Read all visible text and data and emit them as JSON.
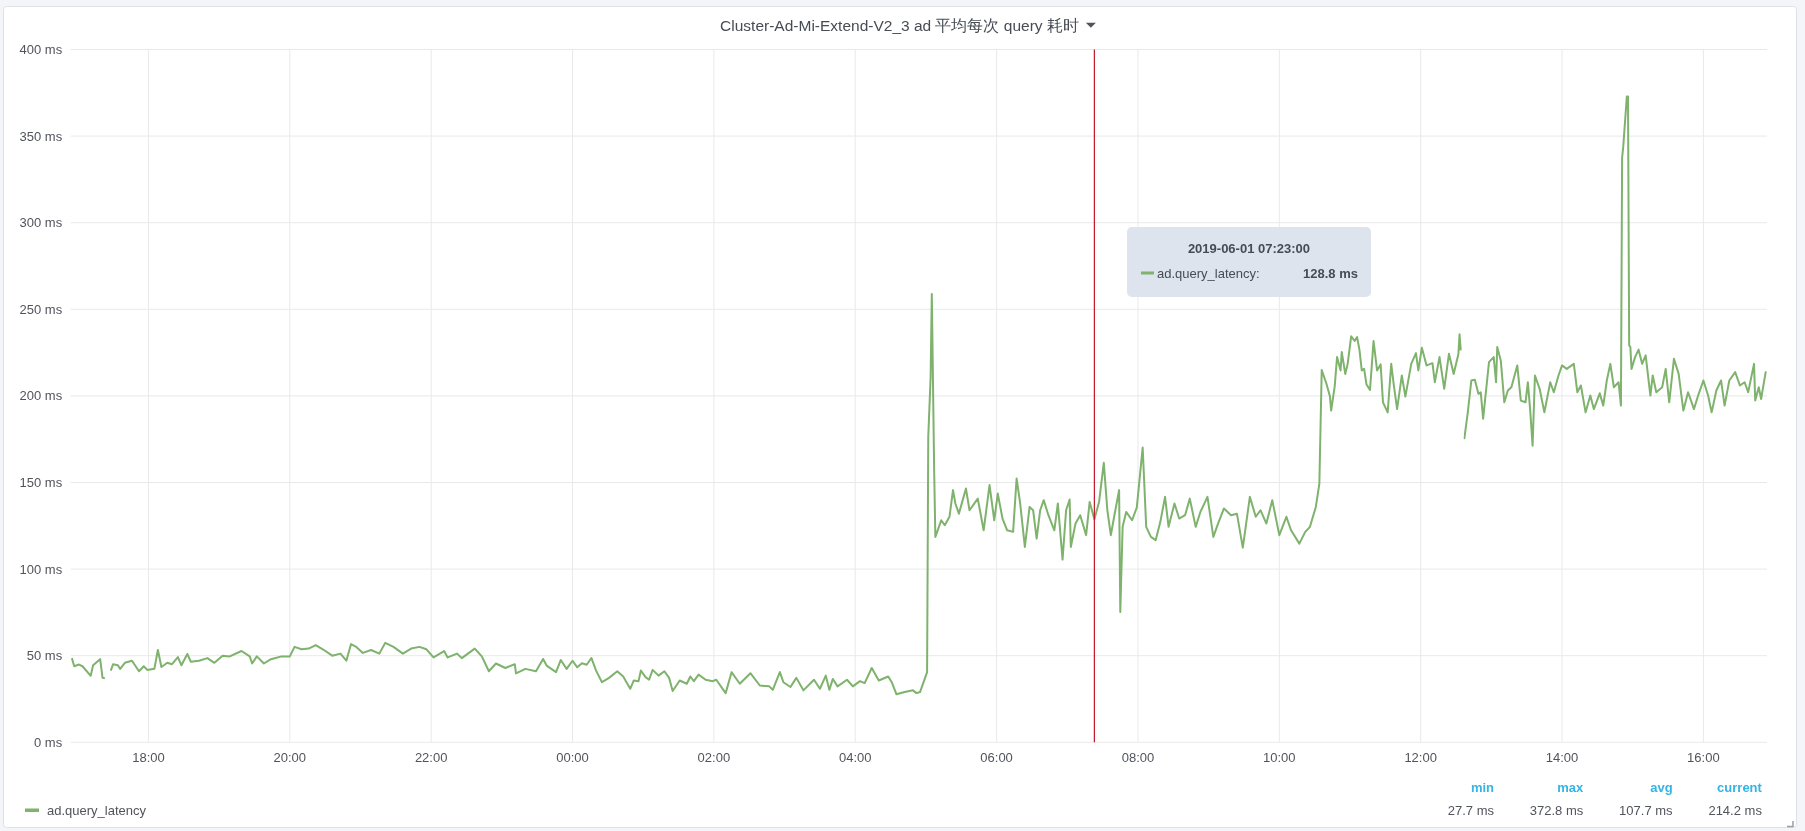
{
  "chart_data": {
    "type": "line",
    "title": "Cluster-Ad-Mi-Extend-V2_3 ad 平均每次 query 耗时",
    "x": [
      "2019-05-31T16:55",
      "2019-05-31T16:57",
      "2019-05-31T17:01",
      "2019-05-31T17:04",
      "2019-05-31T17:11",
      "2019-05-31T17:13",
      "2019-05-31T17:19",
      "2019-05-31T17:21",
      "2019-05-31T17:23",
      "2019-05-31T17:25",
      "2019-05-31T17:28",
      "2019-05-31T17:30",
      "2019-05-31T17:34",
      "2019-05-31T17:36",
      "2019-05-31T17:40",
      "2019-05-31T17:46",
      "2019-05-31T17:52",
      "2019-05-31T17:56",
      "2019-05-31T17:59",
      "2019-05-31T18:05",
      "2019-05-31T18:08",
      "2019-05-31T18:11",
      "2019-05-31T18:16",
      "2019-05-31T18:20",
      "2019-05-31T18:25",
      "2019-05-31T18:28",
      "2019-05-31T18:33",
      "2019-05-31T18:36",
      "2019-05-31T18:43",
      "2019-05-31T18:50",
      "2019-05-31T18:56",
      "2019-05-31T19:03",
      "2019-05-31T19:09",
      "2019-05-31T19:19",
      "2019-05-31T19:26",
      "2019-05-31T19:28",
      "2019-05-31T19:32",
      "2019-05-31T19:38",
      "2019-05-31T19:44",
      "2019-05-31T19:53",
      "2019-05-31T20:00",
      "2019-05-31T20:04",
      "2019-05-31T20:10",
      "2019-05-31T20:16",
      "2019-05-31T20:22",
      "2019-05-31T20:28",
      "2019-05-31T20:36",
      "2019-05-31T20:43",
      "2019-05-31T20:48",
      "2019-05-31T20:52",
      "2019-05-31T20:56",
      "2019-05-31T21:02",
      "2019-05-31T21:09",
      "2019-05-31T21:16",
      "2019-05-31T21:21",
      "2019-05-31T21:28",
      "2019-05-31T21:36",
      "2019-05-31T21:43",
      "2019-05-31T21:50",
      "2019-05-31T21:56",
      "2019-05-31T22:02",
      "2019-05-31T22:11",
      "2019-05-31T22:14",
      "2019-05-31T22:22",
      "2019-05-31T22:26",
      "2019-05-31T22:37",
      "2019-05-31T22:43",
      "2019-05-31T22:49",
      "2019-05-31T22:55",
      "2019-05-31T23:03",
      "2019-05-31T23:11",
      "2019-05-31T23:12",
      "2019-05-31T23:20",
      "2019-05-31T23:29",
      "2019-05-31T23:35",
      "2019-05-31T23:38",
      "2019-05-31T23:46",
      "2019-05-31T23:50",
      "2019-05-31T23:55",
      "2019-06-01T00:00",
      "2019-06-01T00:04",
      "2019-06-01T00:08",
      "2019-06-01T00:12",
      "2019-06-01T00:16",
      "2019-06-01T00:20",
      "2019-06-01T00:25",
      "2019-06-01T00:31",
      "2019-06-01T00:38",
      "2019-06-01T00:43",
      "2019-06-01T00:49",
      "2019-06-01T00:52",
      "2019-06-01T00:56",
      "2019-06-01T00:58",
      "2019-06-01T01:02",
      "2019-06-01T01:05",
      "2019-06-01T01:08",
      "2019-06-01T01:13",
      "2019-06-01T01:18",
      "2019-06-01T01:22",
      "2019-06-01T01:25",
      "2019-06-01T01:31",
      "2019-06-01T01:37",
      "2019-06-01T01:40",
      "2019-06-01T01:43",
      "2019-06-01T01:47",
      "2019-06-01T01:53",
      "2019-06-01T01:59",
      "2019-06-01T02:02",
      "2019-06-01T02:10",
      "2019-06-01T02:15",
      "2019-06-01T02:22",
      "2019-06-01T02:31",
      "2019-06-01T02:39",
      "2019-06-01T02:47",
      "2019-06-01T02:50",
      "2019-06-01T02:56",
      "2019-06-01T02:59",
      "2019-06-01T03:05",
      "2019-06-01T03:10",
      "2019-06-01T03:16",
      "2019-06-01T03:25",
      "2019-06-01T03:30",
      "2019-06-01T03:35",
      "2019-06-01T03:38",
      "2019-06-01T03:41",
      "2019-06-01T03:45",
      "2019-06-01T03:53",
      "2019-06-01T03:58",
      "2019-06-01T04:04",
      "2019-06-01T04:08",
      "2019-06-01T04:14",
      "2019-06-01T04:20",
      "2019-06-01T04:28",
      "2019-06-01T04:31",
      "2019-06-01T04:35",
      "2019-06-01T04:42",
      "2019-06-01T04:49",
      "2019-06-01T04:52",
      "2019-06-01T04:55",
      "2019-06-01T05:01",
      "2019-06-01T05:02",
      "2019-06-01T05:04",
      "2019-06-01T05:05",
      "2019-06-01T05:07",
      "2019-06-01T05:08",
      "2019-06-01T05:10",
      "2019-06-01T05:13",
      "2019-06-01T05:16",
      "2019-06-01T05:20",
      "2019-06-01T05:23",
      "2019-06-01T05:25",
      "2019-06-01T05:28",
      "2019-06-01T05:32",
      "2019-06-01T05:34",
      "2019-06-01T05:37",
      "2019-06-01T05:44",
      "2019-06-01T05:49",
      "2019-06-01T05:54",
      "2019-06-01T05:58",
      "2019-06-01T06:01",
      "2019-06-01T06:05",
      "2019-06-01T06:09",
      "2019-06-01T06:14",
      "2019-06-01T06:17",
      "2019-06-01T06:20",
      "2019-06-01T06:24",
      "2019-06-01T06:28",
      "2019-06-01T06:31",
      "2019-06-01T06:34",
      "2019-06-01T06:37",
      "2019-06-01T06:40",
      "2019-06-01T06:44",
      "2019-06-01T06:49",
      "2019-06-01T06:52",
      "2019-06-01T06:56",
      "2019-06-01T06:59",
      "2019-06-01T07:02",
      "2019-06-01T07:03",
      "2019-06-01T07:07",
      "2019-06-01T07:11",
      "2019-06-01T07:16",
      "2019-06-01T07:19",
      "2019-06-01T07:23",
      "2019-06-01T07:27",
      "2019-06-01T07:31",
      "2019-06-01T07:34",
      "2019-06-01T07:37",
      "2019-06-01T07:40",
      "2019-06-01T07:44",
      "2019-06-01T07:45",
      "2019-06-01T07:47",
      "2019-06-01T07:50",
      "2019-06-01T07:55",
      "2019-06-01T07:59",
      "2019-06-01T08:04",
      "2019-06-01T08:07",
      "2019-06-01T08:11",
      "2019-06-01T08:15",
      "2019-06-01T08:19",
      "2019-06-01T08:23",
      "2019-06-01T08:26",
      "2019-06-01T08:31",
      "2019-06-01T08:35",
      "2019-06-01T08:40",
      "2019-06-01T08:44",
      "2019-06-01T08:49",
      "2019-06-01T08:53",
      "2019-06-01T08:59",
      "2019-06-01T09:04",
      "2019-06-01T09:08",
      "2019-06-01T09:13",
      "2019-06-01T09:19",
      "2019-06-01T09:24",
      "2019-06-01T09:29",
      "2019-06-01T09:35",
      "2019-06-01T09:40",
      "2019-06-01T09:44",
      "2019-06-01T09:49",
      "2019-06-01T09:54",
      "2019-06-01T10:00",
      "2019-06-01T10:06",
      "2019-06-01T10:10",
      "2019-06-01T10:17",
      "2019-06-01T10:22",
      "2019-06-01T10:26",
      "2019-06-01T10:31",
      "2019-06-01T10:34",
      "2019-06-01T10:36",
      "2019-06-01T10:40",
      "2019-06-01T10:43",
      "2019-06-01T10:44",
      "2019-06-01T10:47",
      "2019-06-01T10:49",
      "2019-06-01T10:52",
      "2019-06-01T10:53",
      "2019-06-01T10:56",
      "2019-06-01T10:58",
      "2019-06-01T11:01",
      "2019-06-01T11:04",
      "2019-06-01T11:06",
      "2019-06-01T11:08",
      "2019-06-01T11:10",
      "2019-06-01T11:12",
      "2019-06-01T11:14",
      "2019-06-01T11:17",
      "2019-06-01T11:20",
      "2019-06-01T11:23",
      "2019-06-01T11:26",
      "2019-06-01T11:28",
      "2019-06-01T11:32",
      "2019-06-01T11:35",
      "2019-06-01T11:37",
      "2019-06-01T11:40",
      "2019-06-01T11:44",
      "2019-06-01T11:47",
      "2019-06-01T11:52",
      "2019-06-01T11:56",
      "2019-06-01T11:58",
      "2019-06-01T12:01",
      "2019-06-01T12:05",
      "2019-06-01T12:10",
      "2019-06-01T12:12",
      "2019-06-01T12:16",
      "2019-06-01T12:20",
      "2019-06-01T12:24",
      "2019-06-01T12:28",
      "2019-06-01T12:32",
      "2019-06-01T12:33",
      "2019-06-01T12:34",
      "2019-06-01T12:36",
      "2019-06-01T12:37",
      "2019-06-01T12:40",
      "2019-06-01T12:43",
      "2019-06-01T12:46",
      "2019-06-01T12:49",
      "2019-06-01T12:51",
      "2019-06-01T12:53",
      "2019-06-01T12:58",
      "2019-06-01T13:02",
      "2019-06-01T13:04",
      "2019-06-01T13:05",
      "2019-06-01T13:08",
      "2019-06-01T13:11",
      "2019-06-01T13:14",
      "2019-06-01T13:17",
      "2019-06-01T13:22",
      "2019-06-01T13:25",
      "2019-06-01T13:29",
      "2019-06-01T13:31",
      "2019-06-01T13:33",
      "2019-06-01T13:35",
      "2019-06-01T13:37",
      "2019-06-01T13:41",
      "2019-06-01T13:45",
      "2019-06-01T13:50",
      "2019-06-01T13:53",
      "2019-06-01T13:57",
      "2019-06-01T14:00",
      "2019-06-01T14:04",
      "2019-06-01T14:10",
      "2019-06-01T14:13",
      "2019-06-01T14:16",
      "2019-06-01T14:20",
      "2019-06-01T14:24",
      "2019-06-01T14:27",
      "2019-06-01T14:32",
      "2019-06-01T14:35",
      "2019-06-01T14:38",
      "2019-06-01T14:41",
      "2019-06-01T14:44",
      "2019-06-01T14:48",
      "2019-06-01T14:50",
      "2019-06-01T14:51",
      "2019-06-01T14:52",
      "2019-06-01T14:55",
      "2019-06-01T14:56",
      "2019-06-01T14:57",
      "2019-06-01T14:58",
      "2019-06-01T14:59",
      "2019-06-01T15:02",
      "2019-06-01T15:05",
      "2019-06-01T15:08",
      "2019-06-01T15:11",
      "2019-06-01T15:15",
      "2019-06-01T15:17",
      "2019-06-01T15:20",
      "2019-06-01T15:25",
      "2019-06-01T15:28",
      "2019-06-01T15:31",
      "2019-06-01T15:35",
      "2019-06-01T15:39",
      "2019-06-01T15:43",
      "2019-06-01T15:47",
      "2019-06-01T15:52",
      "2019-06-01T15:56",
      "2019-06-01T16:00",
      "2019-06-01T16:04",
      "2019-06-01T16:07",
      "2019-06-01T16:11",
      "2019-06-01T16:15",
      "2019-06-01T16:18",
      "2019-06-01T16:22",
      "2019-06-01T16:27",
      "2019-06-01T16:31",
      "2019-06-01T16:35",
      "2019-06-01T16:38",
      "2019-06-01T16:43",
      "2019-06-01T16:44",
      "2019-06-01T16:47",
      "2019-06-01T16:49",
      "2019-06-01T16:53"
    ],
    "series": [
      {
        "name": "ad.query_latency",
        "color": "#7eb26d",
        "values": [
          48.6,
          43.9,
          44.9,
          43.9,
          38.4,
          44.5,
          48.0,
          37.3,
          37.0,
          null,
          41.4,
          45.1,
          44.5,
          42.4,
          45.9,
          47.1,
          41.0,
          43.9,
          41.8,
          42.4,
          53.3,
          43.5,
          45.9,
          45.1,
          49.2,
          44.5,
          51.0,
          46.5,
          47.1,
          48.6,
          45.9,
          50.0,
          49.6,
          52.7,
          49.6,
          45.5,
          49.6,
          45.5,
          48.0,
          49.6,
          49.6,
          55.1,
          53.7,
          54.1,
          56.1,
          53.7,
          50.0,
          51.2,
          47.1,
          56.7,
          55.3,
          51.6,
          53.3,
          51.2,
          57.4,
          55.1,
          51.2,
          54.1,
          55.1,
          53.7,
          49.0,
          52.7,
          49.0,
          51.2,
          48.6,
          54.1,
          49.6,
          41.0,
          45.5,
          42.9,
          45.1,
          39.8,
          42.4,
          41.0,
          48.1,
          44.3,
          40.5,
          47.5,
          42.4,
          47.1,
          43.3,
          45.6,
          44.8,
          48.7,
          41.4,
          34.7,
          37.2,
          41.0,
          38.0,
          30.9,
          35.7,
          35.3,
          41.4,
          37.6,
          36.1,
          41.8,
          38.5,
          41.0,
          37.2,
          29.6,
          35.7,
          33.8,
          38.0,
          35.3,
          39.1,
          36.1,
          35.3,
          36.1,
          28.4,
          40.5,
          33.8,
          39.9,
          32.8,
          32.3,
          30.3,
          40.5,
          34.7,
          31.9,
          37.2,
          30.0,
          36.1,
          30.9,
          38.5,
          30.3,
          36.6,
          32.3,
          36.1,
          32.3,
          35.3,
          34.2,
          42.9,
          35.7,
          38.0,
          34.7,
          27.7,
          29.0,
          30.0,
          28.4,
          29.0,
          40.5,
          176.4,
          211.0,
          258.9,
          157.0,
          118.6,
          122.4,
          128.2,
          125.3,
          130.2,
          145.6,
          137.9,
          132.0,
          141.7,
          146.5,
          134.0,
          140.7,
          122.4,
          148.5,
          128.2,
          143.6,
          129.2,
          122.4,
          121.5,
          152.3,
          137.9,
          112.8,
          135.9,
          134.0,
          117.6,
          134.0,
          139.8,
          131.1,
          122.4,
          137.9,
          105.5,
          134.0,
          140.2,
          112.8,
          126.3,
          131.1,
          119.6,
          138.8,
          128.8,
          138.8,
          161.4,
          134.0,
          119.6,
          131.1,
          145.6,
          75.2,
          124.4,
          133.0,
          128.2,
          135.5,
          170.2,
          124.4,
          118.6,
          116.7,
          127.3,
          141.7,
          124.4,
          137.9,
          129.2,
          131.1,
          140.7,
          124.4,
          133.0,
          141.7,
          118.6,
          126.3,
          135.0,
          131.1,
          132.0,
          112.4,
          141.7,
          130.2,
          134.0,
          126.3,
          139.8,
          119.6,
          130.2,
          122.4,
          114.7,
          121.5,
          124.4,
          135.9,
          149.4,
          214.9,
          207.0,
          199.6,
          191.5,
          205.4,
          222.4,
          214.7,
          225.3,
          212.7,
          218.5,
          234.4,
          231.7,
          234.0,
          226.7,
          214.7,
          215.6,
          206.6,
          203.5,
          231.7,
          214.7,
          218.2,
          196.3,
          190.5,
          218.5,
          207.3,
          192.4,
          211.8,
          199.6,
          218.5,
          224.7,
          214.7,
          227.8,
          217.6,
          218.9,
          207.9,
          222.4,
          204.1,
          224.3,
          212.7,
          224.0,
          235.6,
          226.3,
          null,
          175.0,
          190.5,
          208.9,
          209.3,
          201.2,
          202.1,
          186.8,
          219.5,
          222.4,
          207.9,
          228.2,
          220.5,
          196.3,
          203.1,
          205.0,
          217.6,
          197.3,
          196.3,
          207.9,
          191.5,
          171.2,
          211.8,
          204.1,
          190.5,
          207.9,
          202.1,
          211.8,
          217.6,
          215.6,
          218.5,
          202.1,
          206.0,
          190.5,
          200.2,
          192.4,
          201.5,
          194.4,
          208.9,
          218.5,
          205.0,
          207.9,
          194.4,
          337.4,
          344.2,
          372.8,
          372.8,
          229.2,
          228.2,
          215.6,
          222.4,
          226.7,
          218.5,
          223.4,
          200.2,
          211.8,
          202.1,
          205.0,
          215.6,
          196.3,
          221.4,
          212.7,
          191.5,
          202.1,
          192.4,
          201.2,
          208.9,
          200.2,
          190.5,
          203.1,
          208.9,
          194.4,
          208.9,
          213.7,
          206.0,
          207.9,
          202.1,
          218.5,
          197.3,
          205.0,
          198.2,
          214.2
        ]
      }
    ],
    "xlim": [
      "2019-05-31T16:54",
      "2019-06-01T16:54"
    ],
    "ylim": [
      0,
      400
    ],
    "xticks": [
      {
        "value": "2019-05-31T18:00",
        "label": "18:00"
      },
      {
        "value": "2019-05-31T20:00",
        "label": "20:00"
      },
      {
        "value": "2019-05-31T22:00",
        "label": "22:00"
      },
      {
        "value": "2019-06-01T00:00",
        "label": "00:00"
      },
      {
        "value": "2019-06-01T02:00",
        "label": "02:00"
      },
      {
        "value": "2019-06-01T04:00",
        "label": "04:00"
      },
      {
        "value": "2019-06-01T06:00",
        "label": "06:00"
      },
      {
        "value": "2019-06-01T08:00",
        "label": "08:00"
      },
      {
        "value": "2019-06-01T10:00",
        "label": "10:00"
      },
      {
        "value": "2019-06-01T12:00",
        "label": "12:00"
      },
      {
        "value": "2019-06-01T14:00",
        "label": "14:00"
      },
      {
        "value": "2019-06-01T16:00",
        "label": "16:00"
      }
    ],
    "yticks": [
      {
        "value": 0,
        "label": "0 ms"
      },
      {
        "value": 50,
        "label": "50 ms"
      },
      {
        "value": 100,
        "label": "100 ms"
      },
      {
        "value": 150,
        "label": "150 ms"
      },
      {
        "value": 200,
        "label": "200 ms"
      },
      {
        "value": 250,
        "label": "250 ms"
      },
      {
        "value": 300,
        "label": "300 ms"
      },
      {
        "value": 350,
        "label": "350 ms"
      },
      {
        "value": 400,
        "label": "400 ms"
      }
    ],
    "grid": true,
    "legend": "bottom left",
    "ref_lines": [
      {
        "axis": "x",
        "value": "2019-06-01T07:23",
        "color": "#c4162a"
      }
    ],
    "annotations": [
      "2019-06-01 07:23:00",
      "ad.query_latency:",
      "128.8 ms",
      "min",
      "max",
      "avg",
      "current",
      "27.7 ms",
      "372.8 ms",
      "107.7 ms",
      "214.2 ms"
    ]
  }
}
